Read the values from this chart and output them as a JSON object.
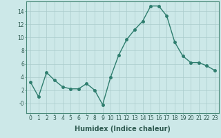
{
  "x": [
    0,
    1,
    2,
    3,
    4,
    5,
    6,
    7,
    8,
    9,
    10,
    11,
    12,
    13,
    14,
    15,
    16,
    17,
    18,
    19,
    20,
    21,
    22,
    23
  ],
  "y": [
    3.2,
    1.0,
    4.7,
    3.5,
    2.5,
    2.2,
    2.2,
    3.0,
    2.0,
    -0.2,
    4.0,
    7.3,
    9.7,
    11.2,
    12.5,
    14.8,
    14.8,
    13.3,
    9.3,
    7.2,
    6.2,
    6.2,
    5.7,
    5.0
  ],
  "line_color": "#2e7d6e",
  "marker": "o",
  "markersize": 2.5,
  "linewidth": 1.0,
  "background_color": "#cce8e8",
  "grid_color": "#aacccc",
  "xlabel": "Humidex (Indice chaleur)",
  "xlabel_fontsize": 7,
  "ylim": [
    -1.5,
    15.5
  ],
  "xlim": [
    -0.5,
    23.5
  ],
  "yticks": [
    0,
    2,
    4,
    6,
    8,
    10,
    12,
    14
  ],
  "ytick_labels": [
    "-0",
    "2",
    "4",
    "6",
    "8",
    "10",
    "12",
    "14"
  ],
  "xticks": [
    0,
    1,
    2,
    3,
    4,
    5,
    6,
    7,
    8,
    9,
    10,
    11,
    12,
    13,
    14,
    15,
    16,
    17,
    18,
    19,
    20,
    21,
    22,
    23
  ],
  "tick_fontsize": 5.5,
  "spine_color": "#4a8a7a",
  "tick_color": "#2e5a50"
}
